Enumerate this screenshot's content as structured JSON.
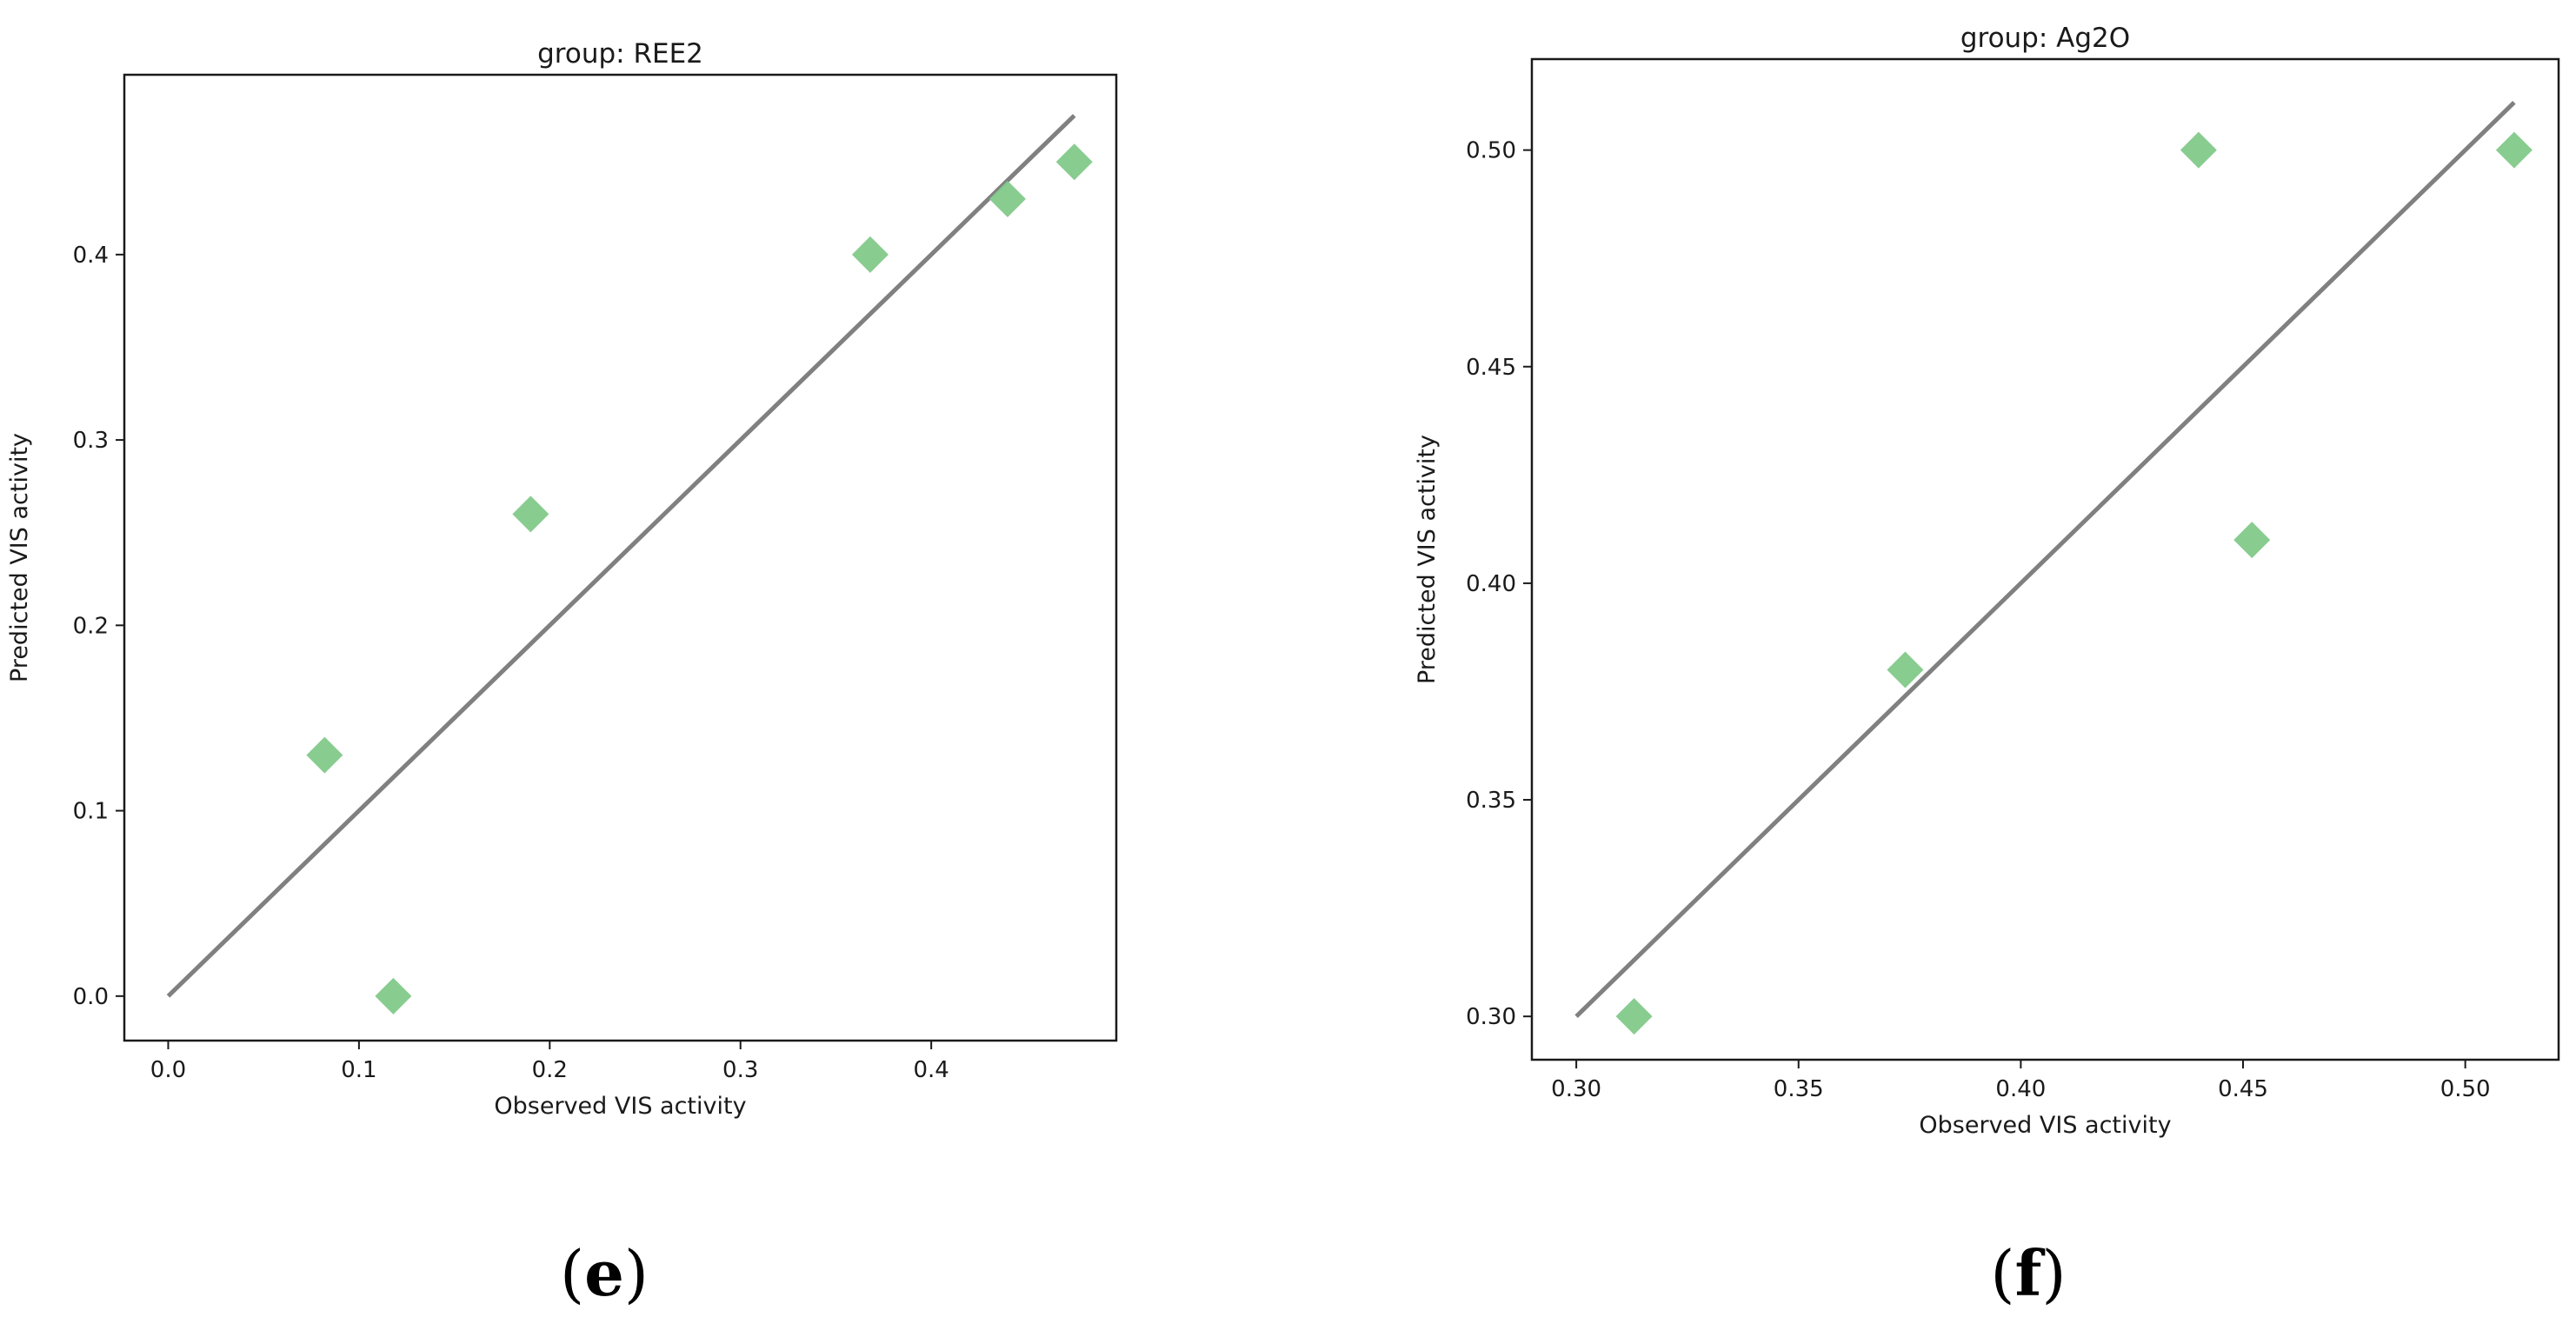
{
  "chart_data": [
    {
      "type": "scatter",
      "panel_label_open": "(",
      "panel_label_letter": "e",
      "panel_label_close": ")",
      "title": "group: REE2",
      "xlabel": "Observed VIS activity",
      "ylabel": "Predicted VIS activity",
      "xlim": [
        -0.023,
        0.497
      ],
      "ylim": [
        -0.024,
        0.497
      ],
      "xticks": [
        0.0,
        0.1,
        0.2,
        0.3,
        0.4
      ],
      "xtick_labels": [
        "0.0",
        "0.1",
        "0.2",
        "0.3",
        "0.4"
      ],
      "yticks": [
        0.0,
        0.1,
        0.2,
        0.3,
        0.4
      ],
      "ytick_labels": [
        "0.0",
        "0.1",
        "0.2",
        "0.3",
        "0.4"
      ],
      "points": {
        "x": [
          0.082,
          0.118,
          0.19,
          0.368,
          0.44,
          0.475
        ],
        "y": [
          0.13,
          0.0,
          0.26,
          0.4,
          0.43,
          0.45
        ]
      },
      "reference_line": {
        "x": [
          0.0,
          0.475
        ],
        "y": [
          0.0,
          0.475
        ]
      },
      "marker": "diamond",
      "marker_color": "#82c98a",
      "line_color": "#808080",
      "grid": false
    },
    {
      "type": "scatter",
      "panel_label_open": "(",
      "panel_label_letter": "f",
      "panel_label_close": ")",
      "title": "group: Ag2O",
      "xlabel": "Observed VIS activity",
      "ylabel": "Predicted VIS activity",
      "xlim": [
        0.29,
        0.521
      ],
      "ylim": [
        0.29,
        0.521
      ],
      "xticks": [
        0.3,
        0.35,
        0.4,
        0.45,
        0.5
      ],
      "xtick_labels": [
        "0.30",
        "0.35",
        "0.40",
        "0.45",
        "0.50"
      ],
      "yticks": [
        0.3,
        0.35,
        0.4,
        0.45,
        0.5
      ],
      "ytick_labels": [
        "0.30",
        "0.35",
        "0.40",
        "0.45",
        "0.50"
      ],
      "points": {
        "x": [
          0.313,
          0.374,
          0.44,
          0.452,
          0.511
        ],
        "y": [
          0.3,
          0.38,
          0.5,
          0.41,
          0.5
        ]
      },
      "reference_line": {
        "x": [
          0.3,
          0.511
        ],
        "y": [
          0.3,
          0.511
        ]
      },
      "marker": "diamond",
      "marker_color": "#82c98a",
      "line_color": "#808080",
      "grid": false
    }
  ]
}
